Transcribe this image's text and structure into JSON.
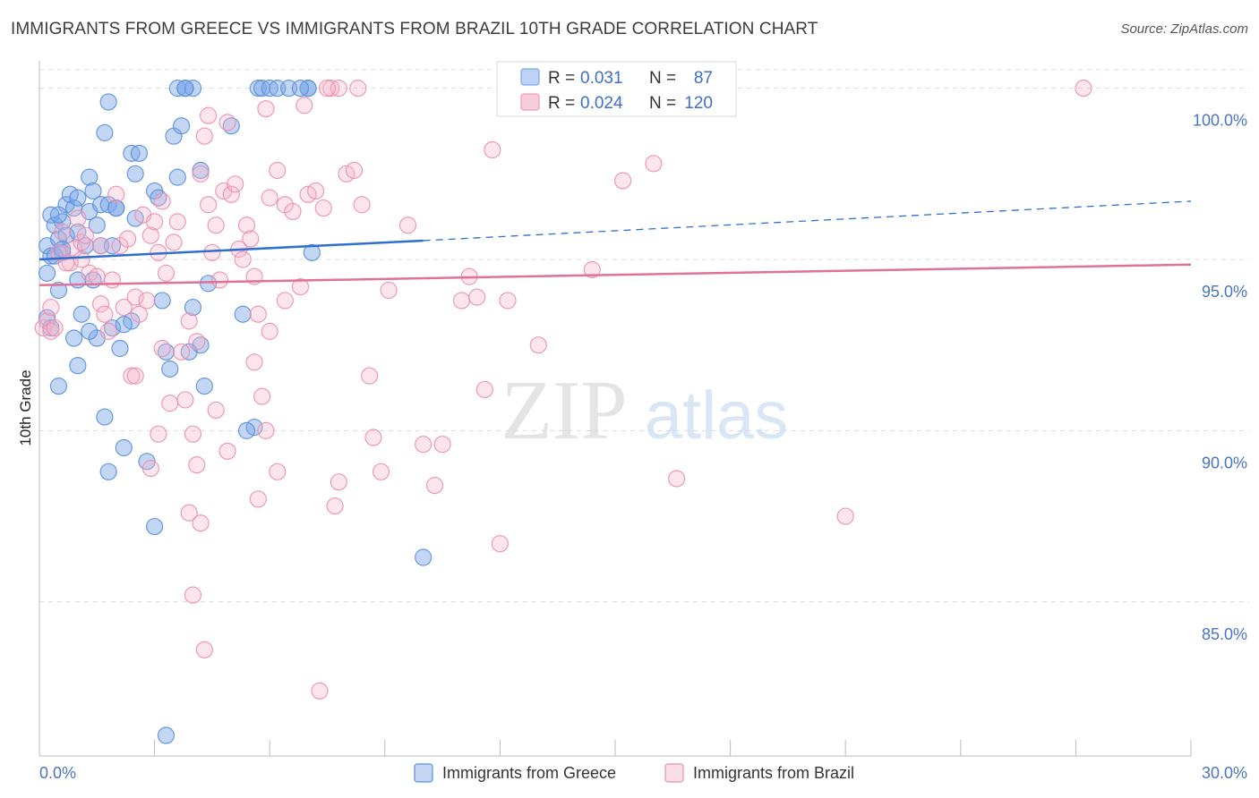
{
  "title": "IMMIGRANTS FROM GREECE VS IMMIGRANTS FROM BRAZIL 10TH GRADE CORRELATION CHART",
  "source": "Source: ZipAtlas.com",
  "watermark": {
    "zip": "ZIP",
    "atlas": "atlas"
  },
  "chart_data": {
    "type": "scatter",
    "title": "IMMIGRANTS FROM GREECE VS IMMIGRANTS FROM BRAZIL 10TH GRADE CORRELATION CHART",
    "xlabel": "",
    "ylabel": "10th Grade",
    "xlim": [
      0,
      30
    ],
    "ylim": [
      80.5,
      100.8
    ],
    "x_tick_labels": [
      "0.0%",
      "30.0%"
    ],
    "y_ticks": [
      85,
      90,
      95,
      100
    ],
    "y_tick_labels": [
      "85.0%",
      "90.0%",
      "95.0%",
      "100.0%"
    ],
    "legend": {
      "position": "top-center",
      "r_label": "R =",
      "n_label": "N =",
      "rows": [
        {
          "name": "Immigrants from Greece",
          "r": "0.031",
          "n": "87",
          "color": "#7ba7e8"
        },
        {
          "name": "Immigrants from Brazil",
          "r": "0.024",
          "n": "120",
          "color": "#f09ab7"
        }
      ]
    },
    "series": [
      {
        "name": "Immigrants from Greece",
        "color": "#7ba7e8",
        "stroke": "#5b8fdc",
        "trend": {
          "x0": 0,
          "y0": 95.0,
          "x1": 10,
          "y1": 95.55,
          "x_dash_end": 30,
          "y_dash_end": 96.7,
          "color": "#2e6fd1"
        },
        "points": [
          [
            0.2,
            95.4
          ],
          [
            0.3,
            96.3
          ],
          [
            0.3,
            95.1
          ],
          [
            0.4,
            96.0
          ],
          [
            0.5,
            94.1
          ],
          [
            0.5,
            95.6
          ],
          [
            0.6,
            96.1
          ],
          [
            0.6,
            95.2
          ],
          [
            0.7,
            96.6
          ],
          [
            0.7,
            95.7
          ],
          [
            0.8,
            96.9
          ],
          [
            0.9,
            96.5
          ],
          [
            1.0,
            96.8
          ],
          [
            1.0,
            95.8
          ],
          [
            1.0,
            94.4
          ],
          [
            1.1,
            93.4
          ],
          [
            1.2,
            95.4
          ],
          [
            1.3,
            96.4
          ],
          [
            1.3,
            97.4
          ],
          [
            1.4,
            97.0
          ],
          [
            1.4,
            94.4
          ],
          [
            1.5,
            96.0
          ],
          [
            1.5,
            92.7
          ],
          [
            1.6,
            95.4
          ],
          [
            1.6,
            96.6
          ],
          [
            1.7,
            98.7
          ],
          [
            1.8,
            96.6
          ],
          [
            1.9,
            95.4
          ],
          [
            1.9,
            93.0
          ],
          [
            2.0,
            96.5
          ],
          [
            2.1,
            92.4
          ],
          [
            2.2,
            89.5
          ],
          [
            1.8,
            88.8
          ],
          [
            1.7,
            90.4
          ],
          [
            1.3,
            92.9
          ],
          [
            1.0,
            91.9
          ],
          [
            0.9,
            92.7
          ],
          [
            0.5,
            91.3
          ],
          [
            1.8,
            99.6
          ],
          [
            2.4,
            98.1
          ],
          [
            2.5,
            97.5
          ],
          [
            2.6,
            98.1
          ],
          [
            2.5,
            96.2
          ],
          [
            2.4,
            93.2
          ],
          [
            2.2,
            93.1
          ],
          [
            2.8,
            89.1
          ],
          [
            3.0,
            97.0
          ],
          [
            3.1,
            96.8
          ],
          [
            3.2,
            93.8
          ],
          [
            3.3,
            92.3
          ],
          [
            3.4,
            91.8
          ],
          [
            3.5,
            98.6
          ],
          [
            3.6,
            97.4
          ],
          [
            3.7,
            98.9
          ],
          [
            3.6,
            100.0
          ],
          [
            3.8,
            100.0
          ],
          [
            3.9,
            92.3
          ],
          [
            4.0,
            93.6
          ],
          [
            4.2,
            97.6
          ],
          [
            4.2,
            92.5
          ],
          [
            4.4,
            94.3
          ],
          [
            4.3,
            91.3
          ],
          [
            3.3,
            81.1
          ],
          [
            3.0,
            87.2
          ],
          [
            5.0,
            98.9
          ],
          [
            5.3,
            93.4
          ],
          [
            5.6,
            90.1
          ],
          [
            5.4,
            90.0
          ],
          [
            5.7,
            100.0
          ],
          [
            5.8,
            100.0
          ],
          [
            6.0,
            100.0
          ],
          [
            6.2,
            100.0
          ],
          [
            6.5,
            100.0
          ],
          [
            7.0,
            100.0
          ],
          [
            7.1,
            95.2
          ],
          [
            7.0,
            100.0
          ],
          [
            6.8,
            100.0
          ],
          [
            4.0,
            100.0
          ],
          [
            3.8,
            100.0
          ],
          [
            10.0,
            86.3
          ],
          [
            0.2,
            93.3
          ],
          [
            0.3,
            93.0
          ],
          [
            0.2,
            94.6
          ],
          [
            0.4,
            95.1
          ],
          [
            0.6,
            95.3
          ],
          [
            0.5,
            96.3
          ],
          [
            2.0,
            96.5
          ]
        ]
      },
      {
        "name": "Immigrants from Brazil",
        "color": "#f5b5c9",
        "stroke": "#ec8fad",
        "trend": {
          "x0": 0,
          "y0": 94.25,
          "x1": 30,
          "y1": 94.85,
          "color": "#e07198"
        },
        "points": [
          [
            0.1,
            93.0
          ],
          [
            0.2,
            93.2
          ],
          [
            0.3,
            93.6
          ],
          [
            0.5,
            95.2
          ],
          [
            0.6,
            95.8
          ],
          [
            0.8,
            94.9
          ],
          [
            0.9,
            95.3
          ],
          [
            1.0,
            96.2
          ],
          [
            1.1,
            95.5
          ],
          [
            1.2,
            95.7
          ],
          [
            1.3,
            94.6
          ],
          [
            1.5,
            94.5
          ],
          [
            1.6,
            95.4
          ],
          [
            1.6,
            93.7
          ],
          [
            1.7,
            93.4
          ],
          [
            1.8,
            92.9
          ],
          [
            1.9,
            94.4
          ],
          [
            2.0,
            96.9
          ],
          [
            2.1,
            95.4
          ],
          [
            2.2,
            93.6
          ],
          [
            2.3,
            95.6
          ],
          [
            2.4,
            91.6
          ],
          [
            2.5,
            93.9
          ],
          [
            2.6,
            93.4
          ],
          [
            2.7,
            96.3
          ],
          [
            2.8,
            93.8
          ],
          [
            2.9,
            95.7
          ],
          [
            3.0,
            96.1
          ],
          [
            3.1,
            95.2
          ],
          [
            3.2,
            96.7
          ],
          [
            3.3,
            94.6
          ],
          [
            3.5,
            95.5
          ],
          [
            3.6,
            96.1
          ],
          [
            3.7,
            92.3
          ],
          [
            3.8,
            90.9
          ],
          [
            3.9,
            93.2
          ],
          [
            4.0,
            89.9
          ],
          [
            4.1,
            89.0
          ],
          [
            4.2,
            97.5
          ],
          [
            4.3,
            98.6
          ],
          [
            4.4,
            96.6
          ],
          [
            4.5,
            95.2
          ],
          [
            4.6,
            96.0
          ],
          [
            4.7,
            94.4
          ],
          [
            4.8,
            97.0
          ],
          [
            4.9,
            99.0
          ],
          [
            5.0,
            96.9
          ],
          [
            5.1,
            97.2
          ],
          [
            5.2,
            95.3
          ],
          [
            5.3,
            95.0
          ],
          [
            5.4,
            96.0
          ],
          [
            5.5,
            95.6
          ],
          [
            5.6,
            94.5
          ],
          [
            5.7,
            93.4
          ],
          [
            5.8,
            91.0
          ],
          [
            5.9,
            90.0
          ],
          [
            6.0,
            96.8
          ],
          [
            6.2,
            97.6
          ],
          [
            6.4,
            96.6
          ],
          [
            6.6,
            96.4
          ],
          [
            6.8,
            94.2
          ],
          [
            7.0,
            96.9
          ],
          [
            7.2,
            97.0
          ],
          [
            7.4,
            96.5
          ],
          [
            7.6,
            100.0
          ],
          [
            7.8,
            100.0
          ],
          [
            8.0,
            97.5
          ],
          [
            8.2,
            97.6
          ],
          [
            8.4,
            96.6
          ],
          [
            8.6,
            91.6
          ],
          [
            8.7,
            89.8
          ],
          [
            8.9,
            88.8
          ],
          [
            9.1,
            94.1
          ],
          [
            9.6,
            96.0
          ],
          [
            10.0,
            89.6
          ],
          [
            10.3,
            88.4
          ],
          [
            10.5,
            89.6
          ],
          [
            11.0,
            93.8
          ],
          [
            11.2,
            94.5
          ],
          [
            11.4,
            93.9
          ],
          [
            11.6,
            91.2
          ],
          [
            11.8,
            98.2
          ],
          [
            12.0,
            86.7
          ],
          [
            12.2,
            93.8
          ],
          [
            13.0,
            92.5
          ],
          [
            14.4,
            94.7
          ],
          [
            15.2,
            97.3
          ],
          [
            16.0,
            97.8
          ],
          [
            16.6,
            88.6
          ],
          [
            21.0,
            87.5
          ],
          [
            27.2,
            100.0
          ],
          [
            6.9,
            99.5
          ],
          [
            7.5,
            100.0
          ],
          [
            8.3,
            100.0
          ],
          [
            5.9,
            99.4
          ],
          [
            4.4,
            99.2
          ],
          [
            4.1,
            92.6
          ],
          [
            4.6,
            90.6
          ],
          [
            4.0,
            85.2
          ],
          [
            4.3,
            83.6
          ],
          [
            7.3,
            82.4
          ],
          [
            4.2,
            87.3
          ],
          [
            3.9,
            87.6
          ],
          [
            5.7,
            88.0
          ],
          [
            6.2,
            88.8
          ],
          [
            3.4,
            90.8
          ],
          [
            3.1,
            89.9
          ],
          [
            2.9,
            88.9
          ],
          [
            2.5,
            91.6
          ],
          [
            7.7,
            87.8
          ],
          [
            7.8,
            88.5
          ],
          [
            6.0,
            92.9
          ],
          [
            5.6,
            92.0
          ],
          [
            4.9,
            89.4
          ],
          [
            6.4,
            93.8
          ],
          [
            3.2,
            92.4
          ],
          [
            0.3,
            92.9
          ],
          [
            0.4,
            93.0
          ],
          [
            0.7,
            94.9
          ],
          [
            1.1,
            95.0
          ]
        ]
      }
    ],
    "bottom_legend": [
      "Immigrants from Greece",
      "Immigrants from Brazil"
    ]
  }
}
